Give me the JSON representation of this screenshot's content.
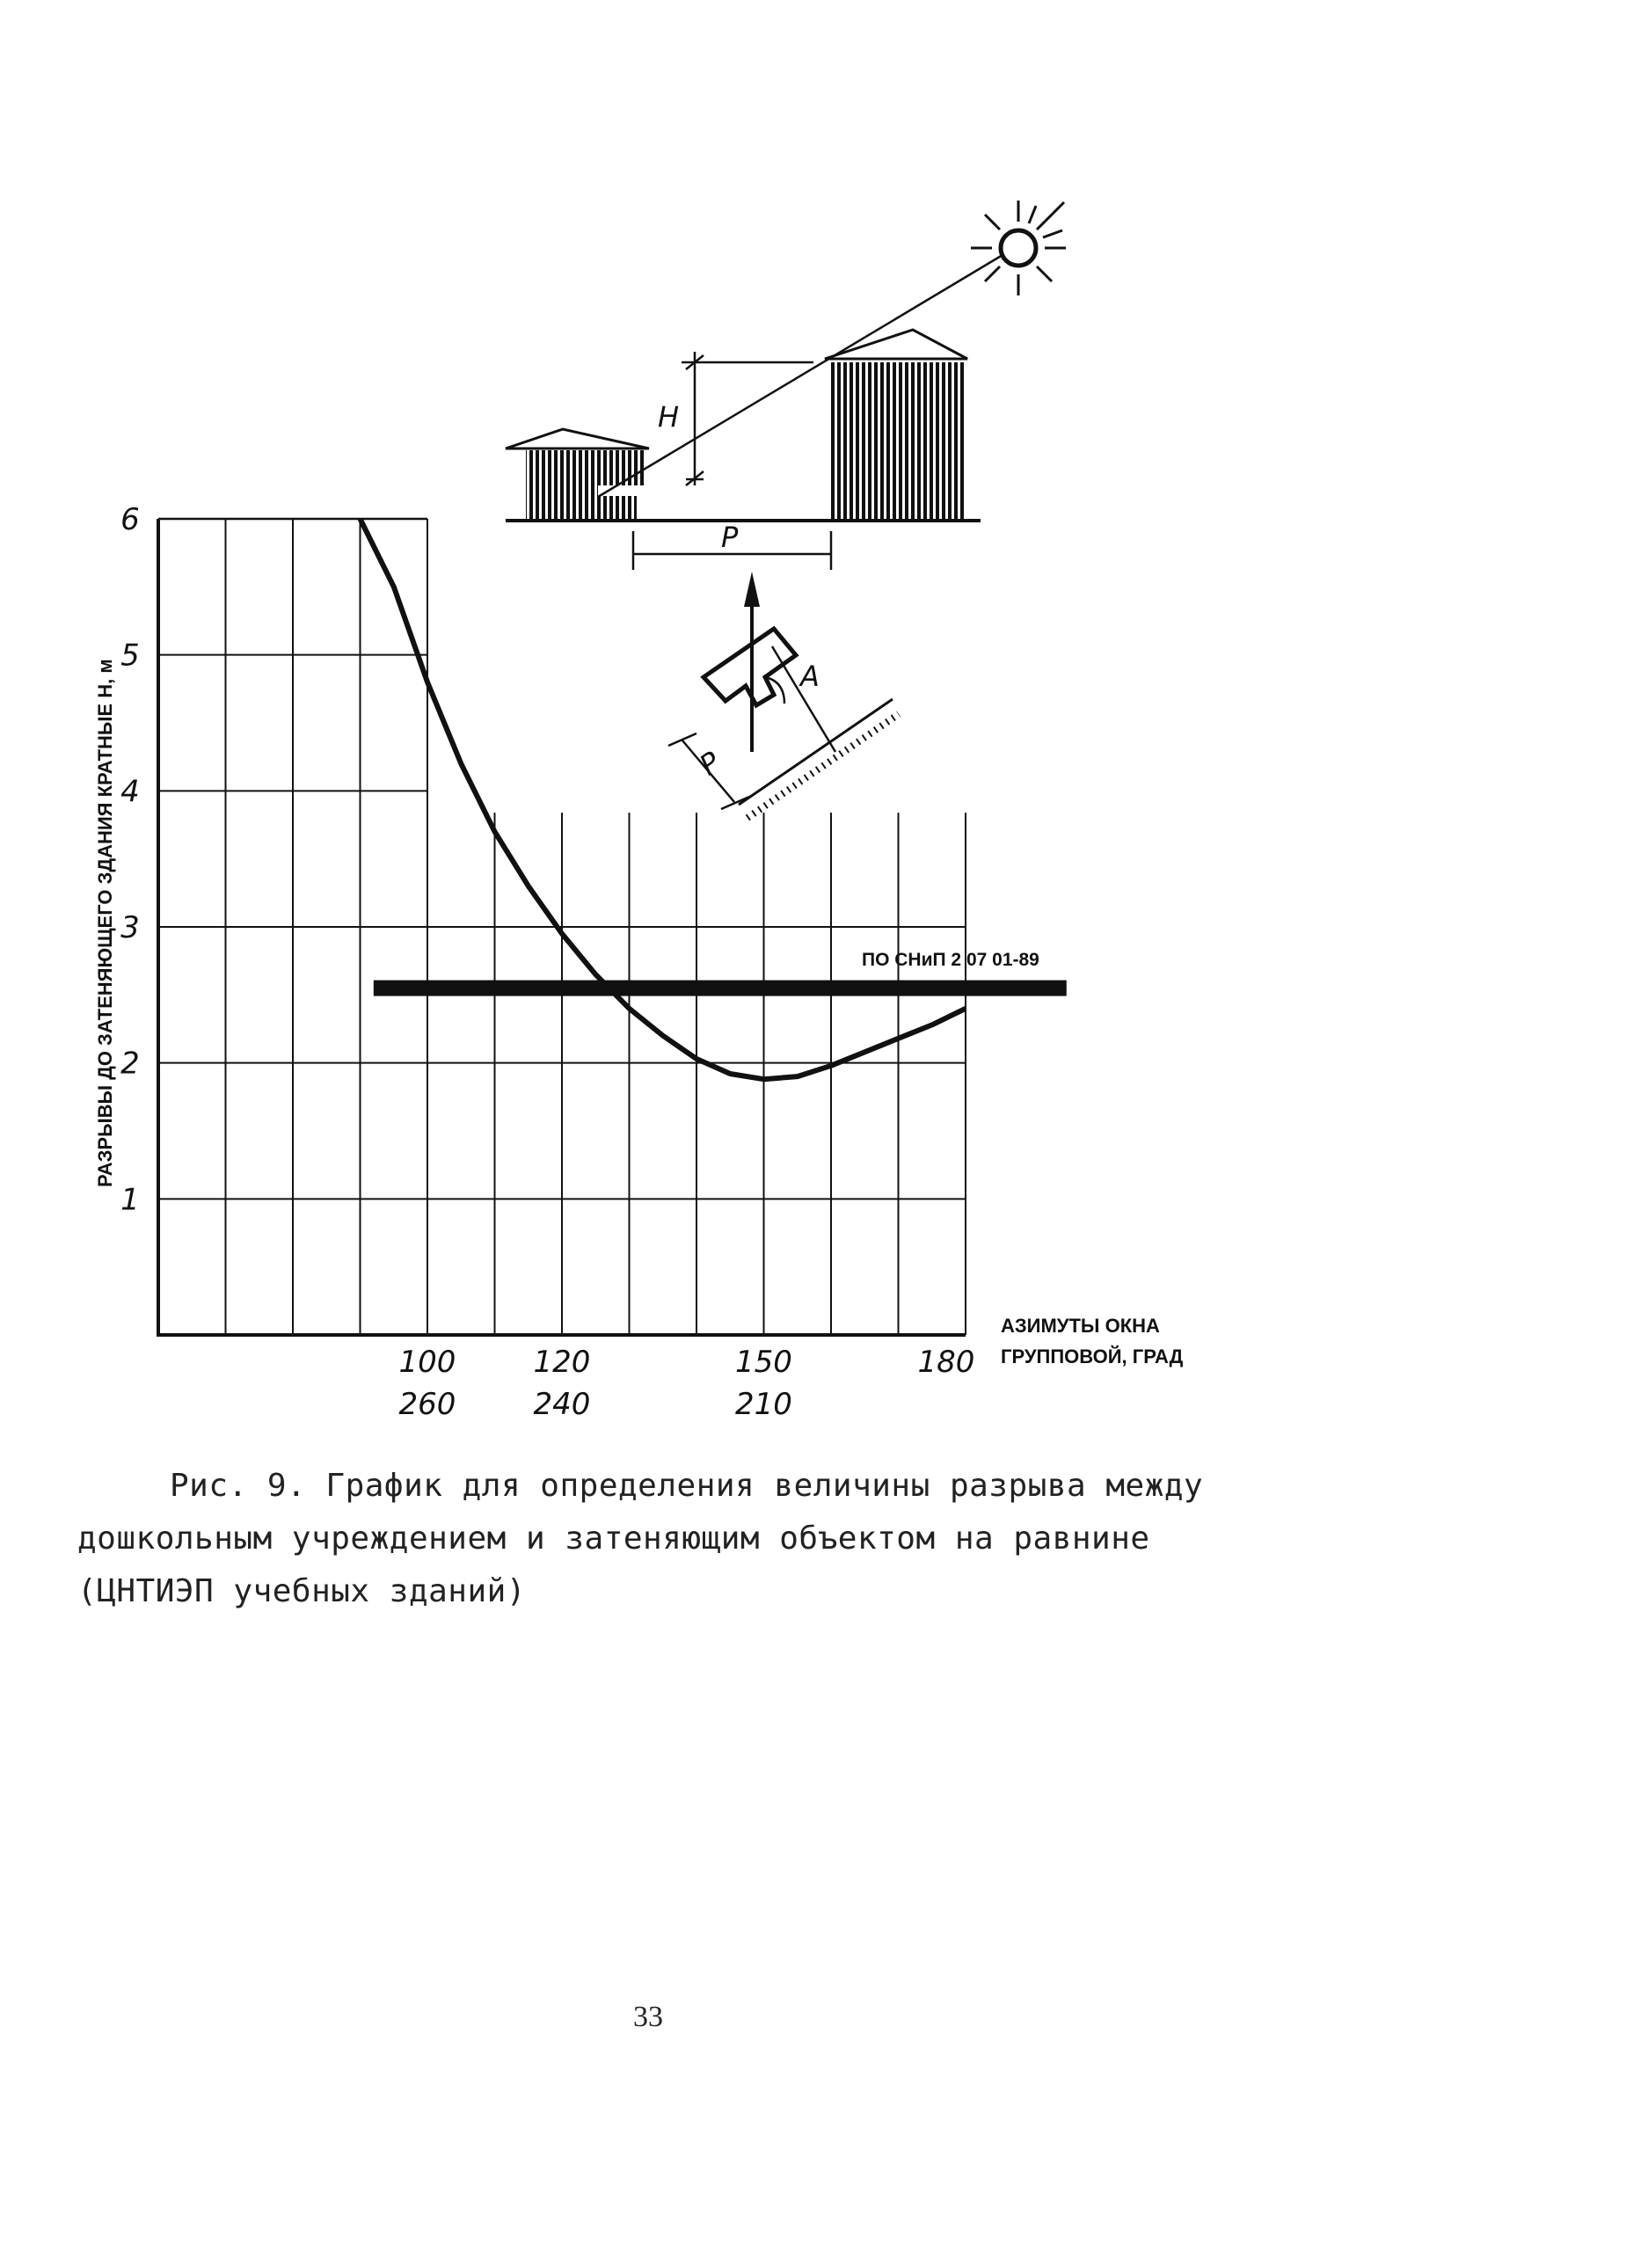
{
  "figure": {
    "y_axis_title": "РАЗРЫВЫ ДО ЗАТЕНЯЮЩЕГО ЗДАНИЯ КРАТНЫЕ Н, м",
    "x_axis_title_line1": "АЗИМУТЫ ОКНА",
    "x_axis_title_line2": "ГРУППОВОЙ, ГРАД",
    "norm_line_label": "ПО СНиП 2 07 01-89",
    "diagram_labels": {
      "h": "H",
      "p_top": "P",
      "a": "A",
      "p_bottom": "P"
    }
  },
  "chart_data": {
    "type": "line",
    "xlabel": "АЗИМУТЫ ОКНА ГРУППОВОЙ, ГРАД",
    "ylabel": "РАЗРЫВЫ ДО ЗАТЕНЯЮЩЕГО ЗДАНИЯ КРАТНЫЕ Н, м",
    "xlim": [
      60,
      180
    ],
    "ylim": [
      0,
      6
    ],
    "y_ticks": [
      "1",
      "2",
      "3",
      "4",
      "5",
      "6"
    ],
    "x_ticks_top": [
      "100",
      "120",
      "150",
      "180"
    ],
    "x_ticks_bottom": [
      "260",
      "240",
      "210"
    ],
    "grid": true,
    "curve": {
      "x": [
        90,
        95,
        100,
        105,
        110,
        115,
        120,
        125,
        130,
        135,
        140,
        145,
        150,
        155,
        160,
        165,
        170,
        175,
        180
      ],
      "y": [
        6.0,
        5.5,
        4.8,
        4.2,
        3.7,
        3.3,
        2.95,
        2.65,
        2.4,
        2.2,
        2.03,
        1.92,
        1.88,
        1.9,
        1.98,
        2.08,
        2.18,
        2.28,
        2.4
      ]
    },
    "threshold": {
      "label": "ПО СНиП 2 07 01-89",
      "y": 2.55,
      "x_range": [
        92,
        195
      ]
    }
  },
  "caption": "Рис. 9. График для определения величины разрыва между дошкольным учреждением и затеняющим объектом на равнине (ЦНТИЭП учебных зданий)",
  "page_number": "33"
}
